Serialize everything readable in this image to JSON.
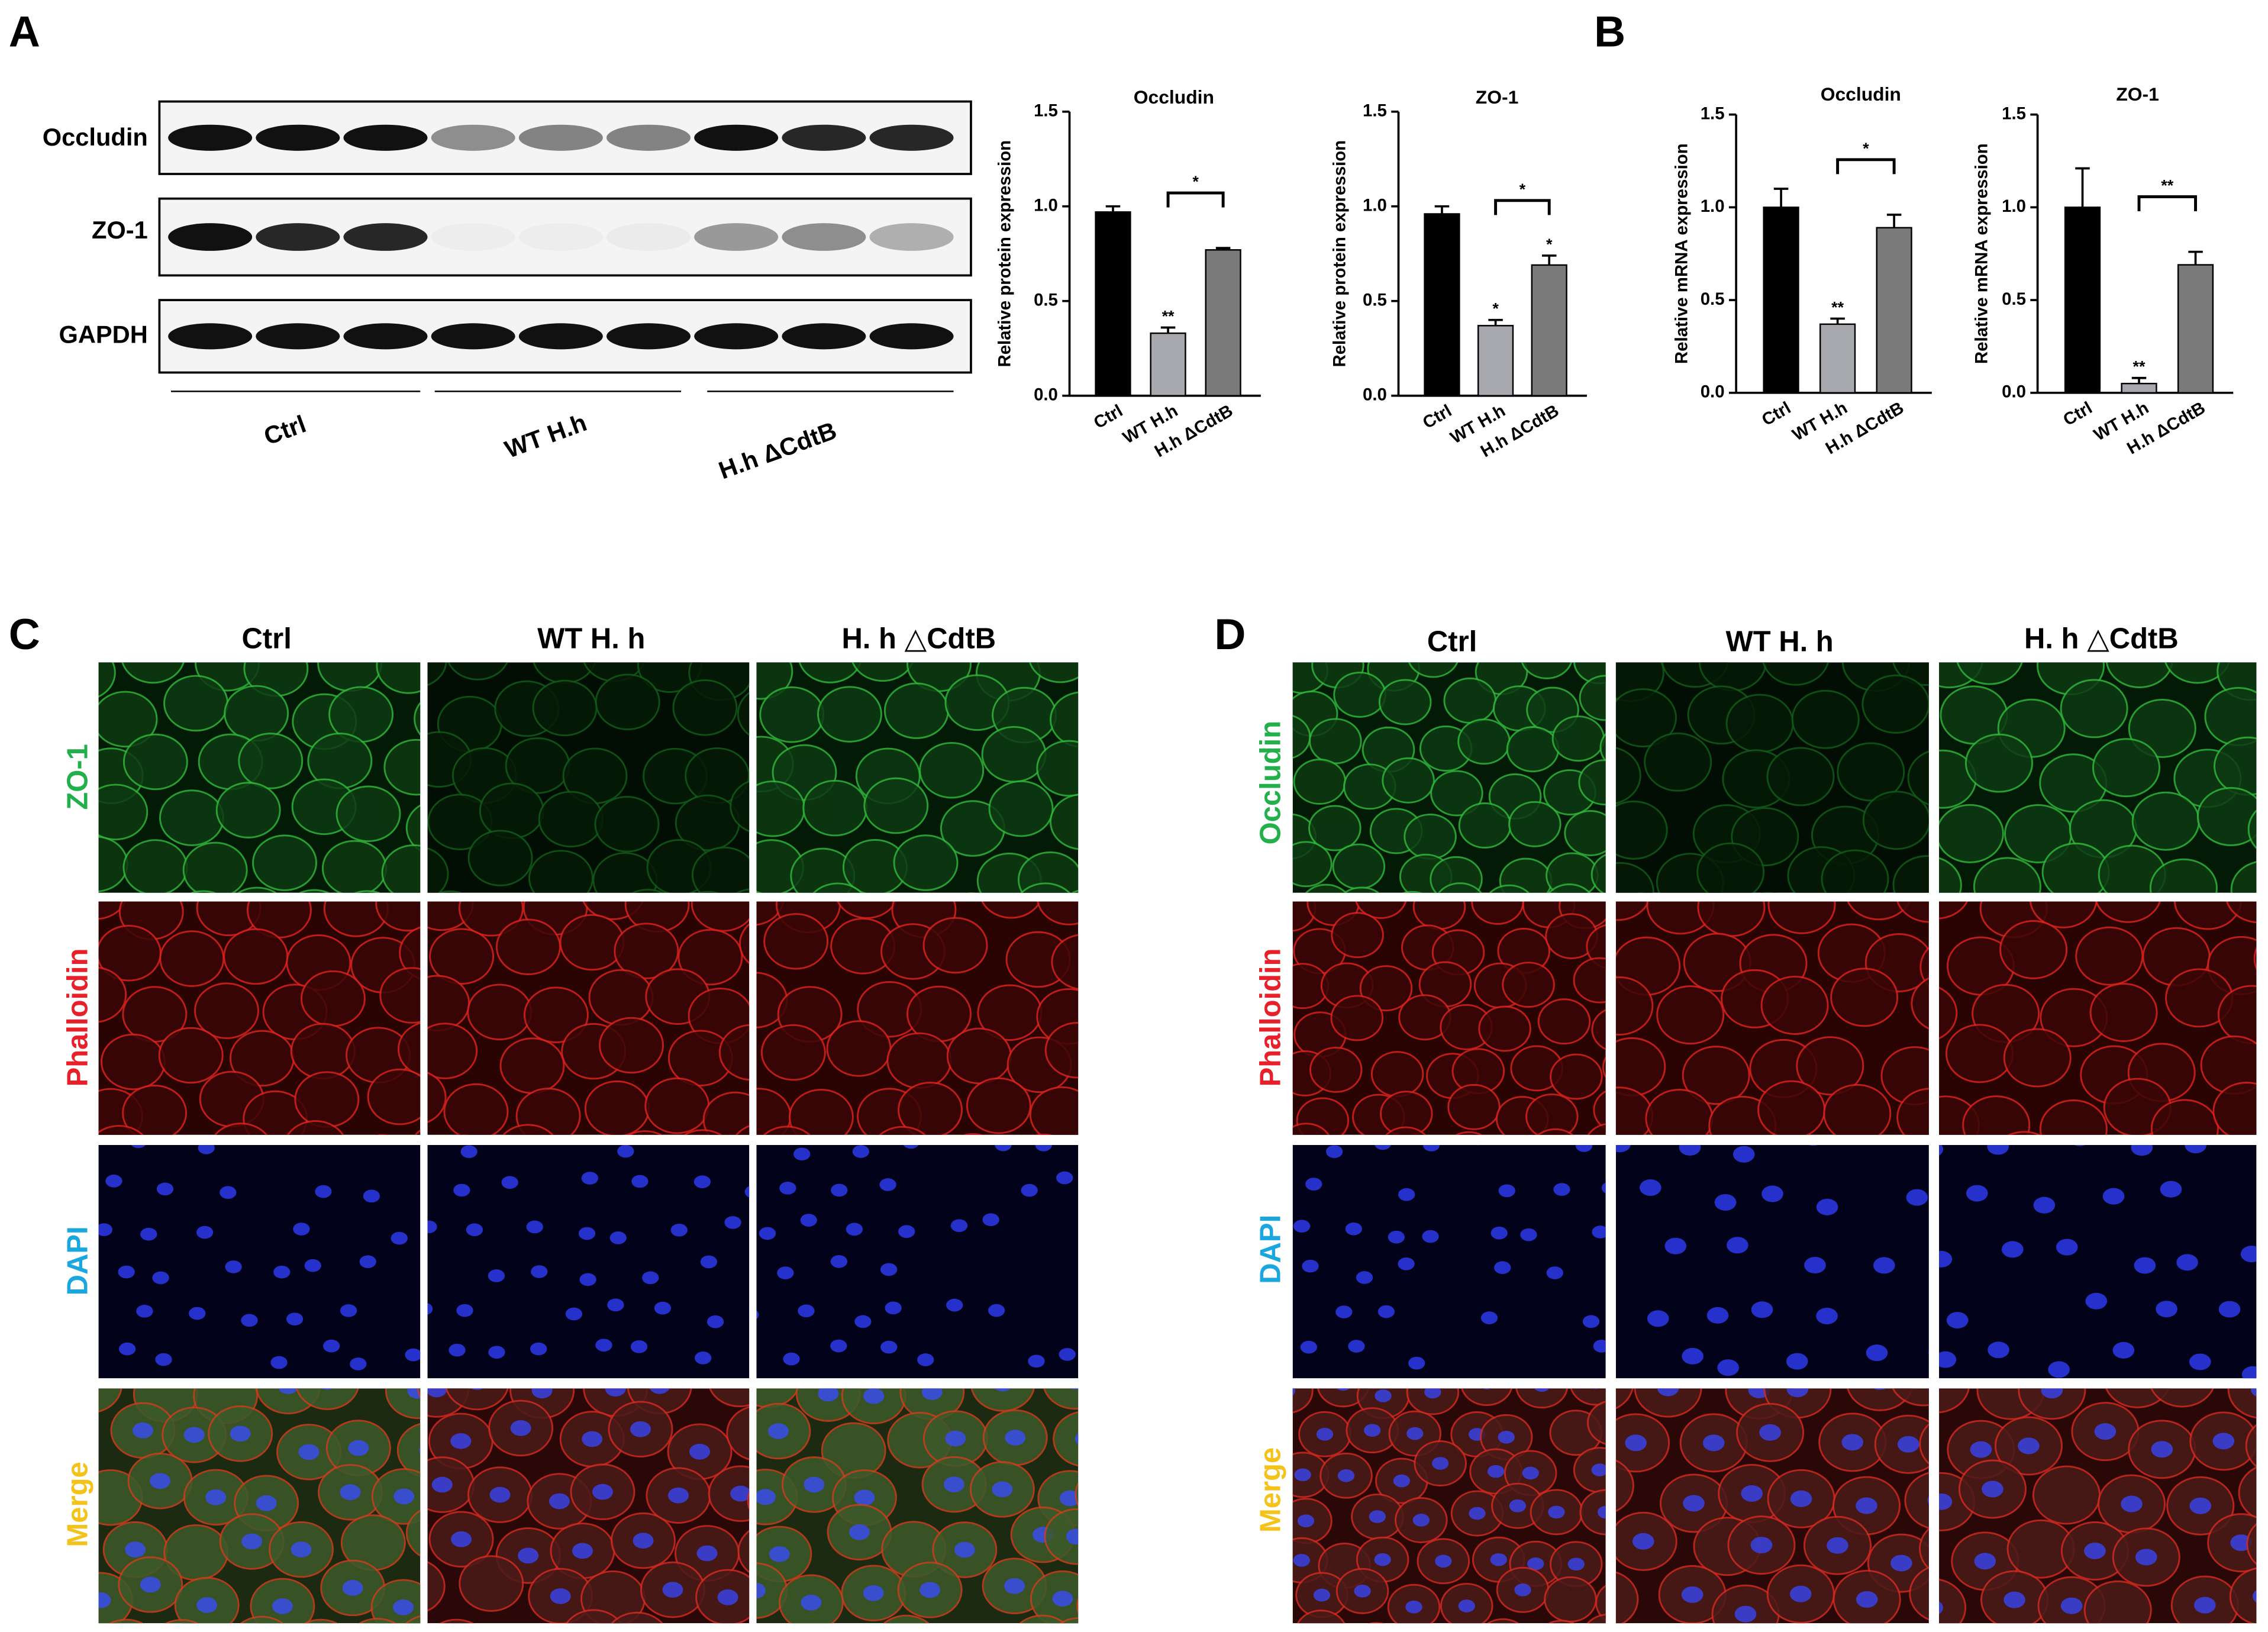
{
  "panels": {
    "a": "A",
    "b": "B",
    "c": "C",
    "d": "D"
  },
  "blot": {
    "rows": [
      "Occludin",
      "ZO-1",
      "GAPDH"
    ],
    "groups": [
      "Ctrl",
      "WT H.h",
      "H.h ΔCdtB"
    ]
  },
  "panel_c": {
    "columns": [
      "Ctrl",
      "WT H. h",
      "H. h △CdtB"
    ],
    "rows": [
      "ZO-1",
      "Phalloidin",
      "DAPI",
      "Merge"
    ]
  },
  "panel_d": {
    "columns": [
      "Ctrl",
      "WT H. h",
      "H. h △CdtB"
    ],
    "rows": [
      "Occludin",
      "Phalloidin",
      "DAPI",
      "Merge"
    ]
  },
  "chart_data": [
    {
      "type": "bar",
      "title": "Occludin",
      "y_label": "Relative protein expression",
      "categories": [
        "Ctrl",
        "WT H.h",
        "H.h ΔCdtB"
      ],
      "values": [
        0.97,
        0.33,
        0.77
      ],
      "errors": [
        0.03,
        0.03,
        0.01
      ],
      "bar_annotations": [
        null,
        "**",
        null
      ],
      "bracket_label": "*",
      "colors": [
        "#000000",
        "#a7a8ae",
        "#7a7a7a"
      ],
      "ylim": [
        0,
        1.5
      ],
      "yticks": [
        {
          "value": 0,
          "label": "0.0"
        },
        0.5,
        {
          "value": 1,
          "label": "1.0"
        },
        1.5
      ]
    },
    {
      "type": "bar",
      "title": "ZO-1",
      "y_label": "Relative protein expression",
      "categories": [
        "Ctrl",
        "WT H.h",
        "H.h ΔCdtB"
      ],
      "values": [
        0.96,
        0.37,
        0.69
      ],
      "errors": [
        0.04,
        0.03,
        0.05
      ],
      "bar_annotations": [
        null,
        "*",
        "*"
      ],
      "bracket_label": "*",
      "colors": [
        "#000000",
        "#a7a8ae",
        "#7a7a7a"
      ],
      "ylim": [
        0,
        1.5
      ],
      "yticks": [
        {
          "value": 0,
          "label": "0.0"
        },
        0.5,
        {
          "value": 1,
          "label": "1.0"
        },
        1.5
      ]
    },
    {
      "type": "bar",
      "title": "Occludin",
      "y_label": "Relative mRNA expression",
      "categories": [
        "Ctrl",
        "WT H.h",
        "H.h ΔCdtB"
      ],
      "values": [
        1.0,
        0.37,
        0.89
      ],
      "errors": [
        0.1,
        0.03,
        0.07
      ],
      "bar_annotations": [
        null,
        "**",
        null
      ],
      "bracket_label": "*",
      "colors": [
        "#000000",
        "#a7a8ae",
        "#7a7a7a"
      ],
      "ylim": [
        0,
        1.5
      ],
      "yticks": [
        {
          "value": 0,
          "label": "0.0"
        },
        0.5,
        {
          "value": 1,
          "label": "1.0"
        },
        1.5
      ]
    },
    {
      "type": "bar",
      "title": "ZO-1",
      "y_label": "Relative mRNA expression",
      "categories": [
        "Ctrl",
        "WT H.h",
        "H.h ΔCdtB"
      ],
      "values": [
        1.0,
        0.05,
        0.69
      ],
      "errors": [
        0.21,
        0.03,
        0.07
      ],
      "bar_annotations": [
        null,
        "**",
        null
      ],
      "bracket_label": "**",
      "colors": [
        "#000000",
        "#a7a8ae",
        "#7a7a7a"
      ],
      "ylim": [
        0,
        1.5
      ],
      "yticks": [
        {
          "value": 0,
          "label": "0.0"
        },
        0.5,
        {
          "value": 1,
          "label": "1.0"
        },
        1.5
      ]
    }
  ]
}
